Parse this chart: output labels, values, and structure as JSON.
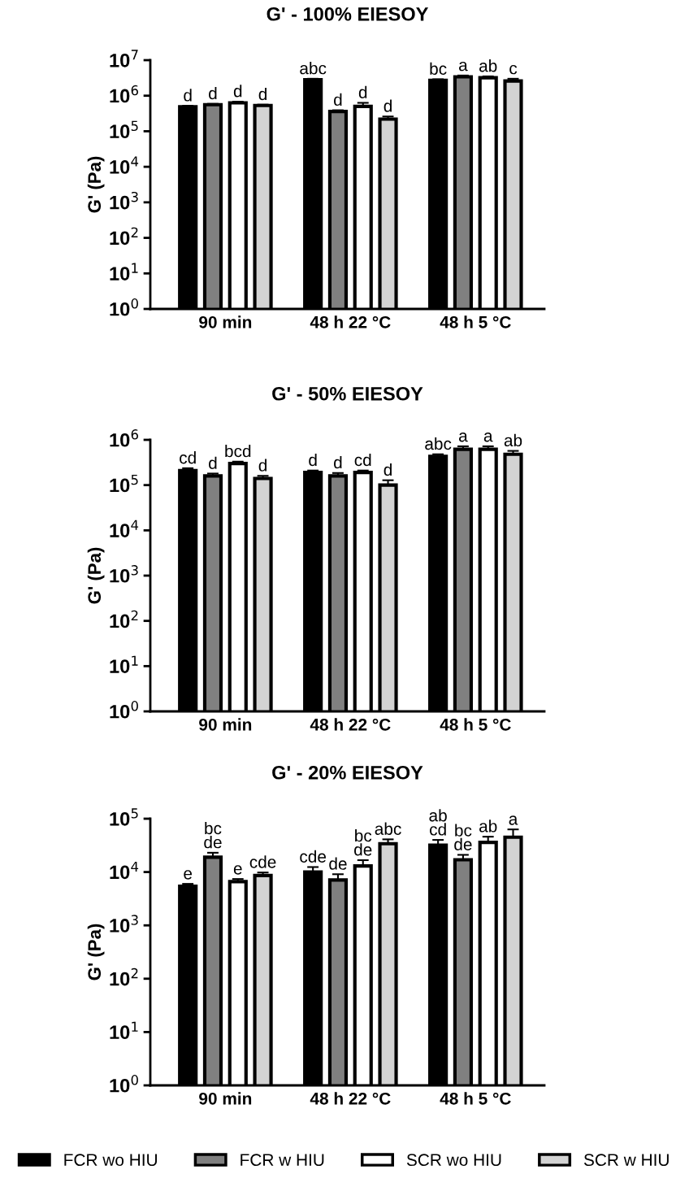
{
  "chart_data": [
    {
      "type": "bar",
      "title": "G' - 100% EIESOY",
      "ylabel": "G' (Pa)",
      "log": true,
      "grid": false,
      "categories": [
        "90 min",
        "48 h 22 °C",
        "48 h 5 °C"
      ],
      "ylim": [
        1,
        10000000
      ],
      "yticks": [
        {
          "value": 1,
          "label": "10$^{0}$"
        },
        {
          "value": 10,
          "label": "10$^{1}$"
        },
        {
          "value": 100,
          "label": "10$^{2}$"
        },
        {
          "value": 1000,
          "label": "10$^{3}$"
        },
        {
          "value": 10000,
          "label": "10$^{4}$"
        },
        {
          "value": 100000,
          "label": "10$^{5}$"
        },
        {
          "value": 1000000,
          "label": "10$^{6}$"
        },
        {
          "value": 10000000,
          "label": "10$^{7}$"
        }
      ],
      "series": [
        {
          "color": "#000000",
          "values": [
            490000,
            2800000,
            2700000
          ],
          "errors": [
            [
              490000,
              520000
            ],
            [
              2800000,
              3000000
            ],
            [
              2700000,
              2900000
            ]
          ],
          "value_labels": [
            "d",
            "abc",
            "bc"
          ]
        },
        {
          "color": "#808080",
          "values": [
            560000,
            360000,
            3400000
          ],
          "errors": [
            [
              560000,
              590000
            ],
            [
              360000,
              390000
            ],
            [
              3400000,
              3700000
            ]
          ],
          "value_labels": [
            "d",
            "d",
            "a"
          ]
        },
        {
          "color": "#ffffff",
          "values": [
            630000,
            500000,
            3200000
          ],
          "errors": [
            [
              630000,
              680000
            ],
            [
              500000,
              630000
            ],
            [
              3200000,
              3500000
            ]
          ],
          "value_labels": [
            "d",
            "d",
            "ab"
          ]
        },
        {
          "color": "#d3d3d3",
          "values": [
            530000,
            220000,
            2600000
          ],
          "errors": [
            [
              530000,
              560000
            ],
            [
              220000,
              260000
            ],
            [
              2600000,
              3000000
            ]
          ],
          "value_labels": [
            "d",
            "d",
            "c"
          ]
        }
      ]
    },
    {
      "type": "bar",
      "title": "G' - 50% EIESOY",
      "ylabel": "G' (Pa)",
      "log": true,
      "grid": false,
      "categories": [
        "90 min",
        "48 h 22 °C",
        "48 h 5 °C"
      ],
      "ylim": [
        1,
        1000000
      ],
      "yticks": [
        {
          "value": 1,
          "label": "10$^{0}$"
        },
        {
          "value": 10,
          "label": "10$^{1}$"
        },
        {
          "value": 100,
          "label": "10$^{2}$"
        },
        {
          "value": 1000,
          "label": "10$^{3}$"
        },
        {
          "value": 10000,
          "label": "10$^{4}$"
        },
        {
          "value": 100000,
          "label": "10$^{5}$"
        },
        {
          "value": 1000000,
          "label": "10$^{6}$"
        }
      ],
      "series": [
        {
          "color": "#000000",
          "values": [
            210000,
            190000,
            430000
          ],
          "errors": [
            [
              210000,
              236000
            ],
            [
              190000,
              210000
            ],
            [
              430000,
              480000
            ]
          ],
          "value_labels": [
            "cd",
            "d",
            "abc"
          ]
        },
        {
          "color": "#808080",
          "values": [
            160000,
            160000,
            620000
          ],
          "errors": [
            [
              160000,
              180000
            ],
            [
              160000,
              185000
            ],
            [
              620000,
              720000
            ]
          ],
          "value_labels": [
            "d",
            "d",
            "a"
          ]
        },
        {
          "color": "#ffffff",
          "values": [
            300000,
            190000,
            620000
          ],
          "errors": [
            [
              300000,
              330000
            ],
            [
              190000,
              210000
            ],
            [
              620000,
              720000
            ]
          ],
          "value_labels": [
            "bcd",
            "cd",
            "a"
          ]
        },
        {
          "color": "#d3d3d3",
          "values": [
            140000,
            100000,
            480000
          ],
          "errors": [
            [
              140000,
              160000
            ],
            [
              100000,
              128000
            ],
            [
              480000,
              570000
            ]
          ],
          "value_labels": [
            "d",
            "d",
            "ab"
          ]
        }
      ]
    },
    {
      "type": "bar",
      "title": "G' - 20% EIESOY",
      "ylabel": "G' (Pa)",
      "log": true,
      "grid": false,
      "legend": "bottom",
      "categories": [
        "90 min",
        "48 h 22 °C",
        "48 h 5 °C"
      ],
      "ylim": [
        1,
        100000
      ],
      "yticks": [
        {
          "value": 1,
          "label": "10$^{0}$"
        },
        {
          "value": 10,
          "label": "10$^{1}$"
        },
        {
          "value": 100,
          "label": "10$^{2}$"
        },
        {
          "value": 1000,
          "label": "10$^{3}$"
        },
        {
          "value": 10000,
          "label": "10$^{4}$"
        },
        {
          "value": 100000,
          "label": "10$^{5}$"
        }
      ],
      "series": [
        {
          "name": "FCR wo HIU",
          "color": "#000000",
          "values": [
            5400,
            10000,
            32000
          ],
          "errors": [
            [
              5400,
              6000
            ],
            [
              10000,
              12400
            ],
            [
              32000,
              40000
            ]
          ],
          "value_labels": [
            "e",
            "cde",
            "ab\ncd"
          ]
        },
        {
          "name": "FCR w HIU",
          "color": "#808080",
          "values": [
            19000,
            7100,
            17000
          ],
          "errors": [
            [
              19000,
              23000
            ],
            [
              7100,
              9100
            ],
            [
              17000,
              21000
            ]
          ],
          "value_labels": [
            "bc\nde",
            "de",
            "bc\nde"
          ]
        },
        {
          "name": "SCR wo HIU",
          "color": "#ffffff",
          "values": [
            6600,
            13000,
            36000
          ],
          "errors": [
            [
              6600,
              7400
            ],
            [
              13000,
              16700
            ],
            [
              36000,
              46000
            ]
          ],
          "value_labels": [
            "e",
            "bc\nde",
            "ab"
          ]
        },
        {
          "name": "SCR w HIU",
          "color": "#d3d3d3",
          "values": [
            8600,
            34000,
            45000
          ],
          "errors": [
            [
              8600,
              9800
            ],
            [
              34000,
              41000
            ],
            [
              45000,
              63000
            ]
          ],
          "value_labels": [
            "cde",
            "abc",
            "a"
          ]
        }
      ]
    }
  ]
}
